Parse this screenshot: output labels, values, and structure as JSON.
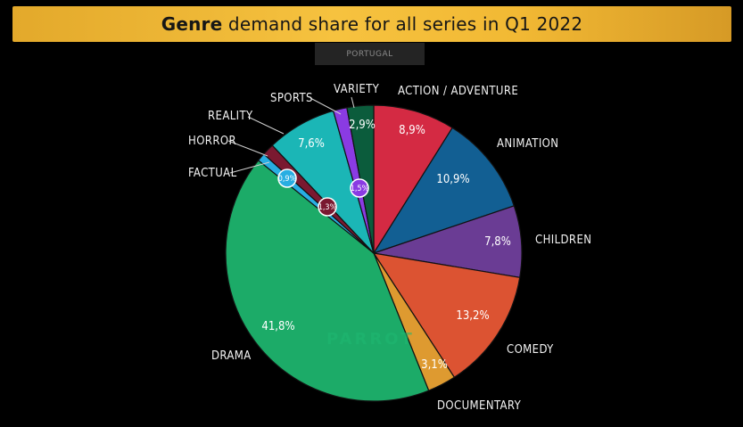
{
  "title": {
    "bold": "Genre",
    "rest": " demand share for all series in Q1 2022"
  },
  "region": "PORTUGAL",
  "watermark": "PARROT",
  "chart_data": {
    "type": "pie",
    "title": "Genre demand share for all series in Q1 2022",
    "subtitle": "PORTUGAL",
    "slices": [
      {
        "label": "ACTION / ADVENTURE",
        "value": 8.9,
        "display": "8,9%",
        "color": "#d42a43"
      },
      {
        "label": "ANIMATION",
        "value": 10.9,
        "display": "10,9%",
        "color": "#125f93"
      },
      {
        "label": "CHILDREN",
        "value": 7.8,
        "display": "7,8%",
        "color": "#6a3c94"
      },
      {
        "label": "COMEDY",
        "value": 13.2,
        "display": "13,2%",
        "color": "#dc5332"
      },
      {
        "label": "DOCUMENTARY",
        "value": 3.1,
        "display": "3,1%",
        "color": "#de9a30"
      },
      {
        "label": "DRAMA",
        "value": 41.8,
        "display": "41,8%",
        "color": "#1cab68"
      },
      {
        "label": "FACTUAL",
        "value": 0.9,
        "display": "0,9%",
        "color": "#28aee2"
      },
      {
        "label": "HORROR",
        "value": 1.3,
        "display": "1,3%",
        "color": "#7a1930"
      },
      {
        "label": "REALITY",
        "value": 7.6,
        "display": "7,6%",
        "color": "#1bb6b6"
      },
      {
        "label": "SPORTS",
        "value": 1.5,
        "display": "1,5%",
        "color": "#8a3be3"
      },
      {
        "label": "VARIETY",
        "value": 2.9,
        "display": "2,9%",
        "color": "#0b5c3c"
      }
    ]
  }
}
